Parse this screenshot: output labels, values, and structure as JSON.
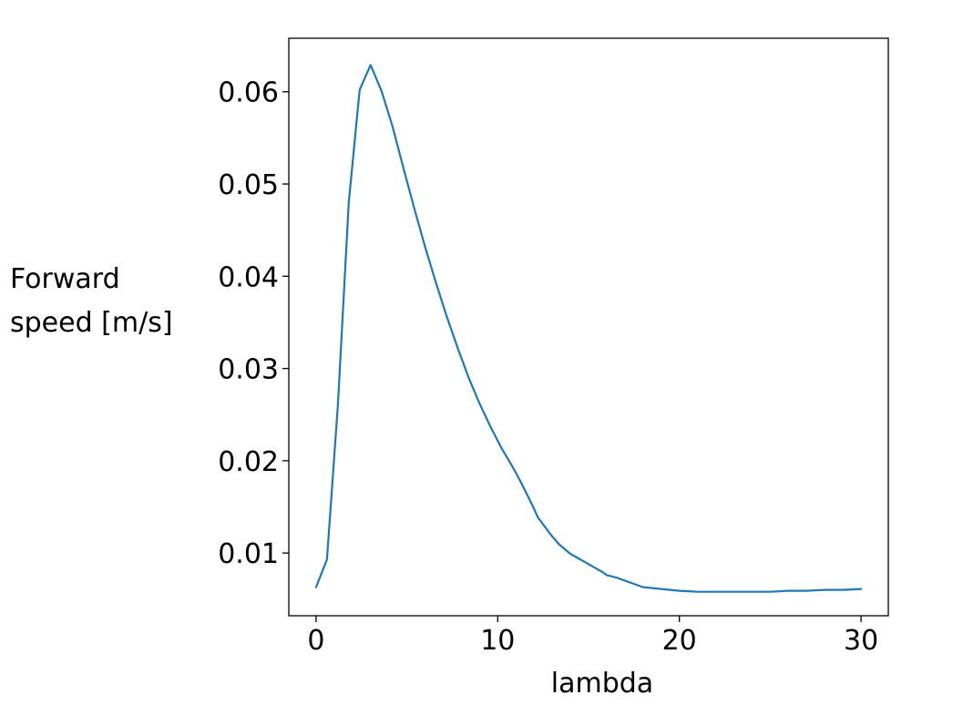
{
  "chart_data": {
    "type": "line",
    "title": "",
    "xlabel": "lambda",
    "ylabel_lines": [
      "Forward",
      "speed [m/s]"
    ],
    "xlim": [
      -1.5,
      31.5
    ],
    "ylim": [
      0.0032,
      0.0658
    ],
    "xticks": [
      0,
      10,
      20,
      30
    ],
    "xtick_labels": [
      "0",
      "10",
      "20",
      "30"
    ],
    "yticks": [
      0.01,
      0.02,
      0.03,
      0.04,
      0.05,
      0.06
    ],
    "ytick_labels": [
      "0.01",
      "0.02",
      "0.03",
      "0.04",
      "0.05",
      "0.06"
    ],
    "grid": false,
    "legend": "none",
    "line_color": "#1f77b4",
    "series": [
      {
        "x": [
          0,
          0.6,
          1.2,
          1.8,
          2.4,
          3.0,
          3.6,
          4.2,
          4.8,
          5.4,
          6.0,
          6.6,
          7.2,
          7.8,
          8.4,
          9.0,
          9.6,
          10.2,
          10.8,
          11.0,
          11.4,
          12.0,
          12.2,
          12.8,
          13.0,
          13.4,
          14.0,
          15.0,
          15.8,
          16.0,
          16.6,
          17.0,
          18.0,
          19.0,
          20.0,
          21.0,
          22.0,
          23.0,
          24.0,
          25.0,
          26.0,
          27.0,
          28.0,
          29.0,
          30.0
        ],
        "y": [
          0.0063,
          0.0093,
          0.026,
          0.048,
          0.0602,
          0.0629,
          0.0601,
          0.0563,
          0.0518,
          0.0474,
          0.0432,
          0.0393,
          0.0356,
          0.0322,
          0.029,
          0.0262,
          0.0237,
          0.0214,
          0.0194,
          0.0187,
          0.0172,
          0.0148,
          0.0139,
          0.0123,
          0.0118,
          0.0109,
          0.0099,
          0.0088,
          0.0079,
          0.0076,
          0.0073,
          0.007,
          0.0063,
          0.0061,
          0.0059,
          0.0058,
          0.0058,
          0.0058,
          0.0058,
          0.0058,
          0.0059,
          0.0059,
          0.006,
          0.006,
          0.0061
        ]
      }
    ]
  }
}
